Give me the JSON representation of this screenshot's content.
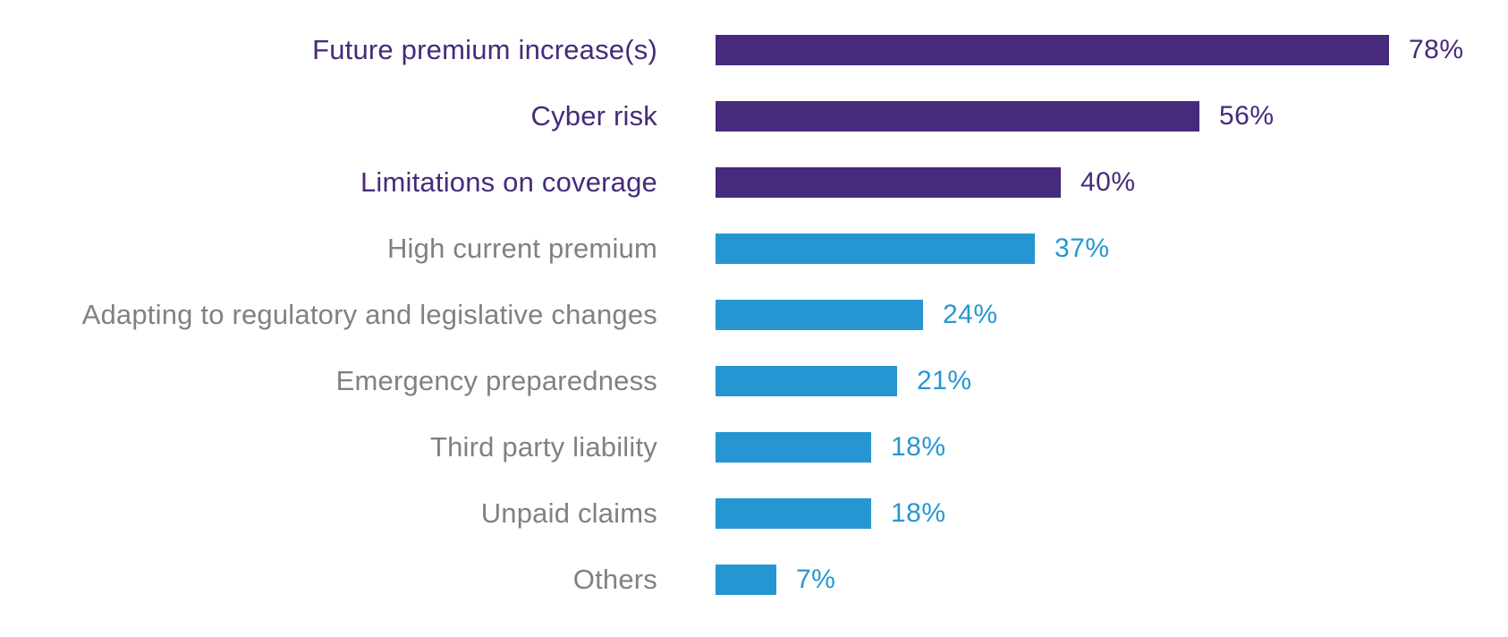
{
  "chart_data": {
    "type": "bar",
    "orientation": "horizontal",
    "title": "",
    "xlabel": "",
    "ylabel": "",
    "xlim": [
      0,
      80
    ],
    "grid": false,
    "legend": false,
    "value_suffix": "%",
    "categories": [
      "Future premium increase(s)",
      "Cyber risk",
      "Limitations on coverage",
      "High current premium",
      "Adapting to regulatory and legislative changes",
      "Emergency preparedness",
      "Third party liability",
      "Unpaid claims",
      "Others"
    ],
    "values": [
      78,
      56,
      40,
      37,
      24,
      21,
      18,
      18,
      7
    ],
    "value_labels": [
      "78%",
      "56%",
      "40%",
      "37%",
      "24%",
      "21%",
      "18%",
      "18%",
      "7%"
    ],
    "highlight_groups": [
      "purple",
      "purple",
      "purple",
      "blue",
      "blue",
      "blue",
      "blue",
      "blue",
      "blue"
    ],
    "colors": {
      "purple_bar": "#472a7b",
      "blue_bar": "#2696d3",
      "purple_label": "#472a7b",
      "gray_label": "#818181"
    }
  }
}
